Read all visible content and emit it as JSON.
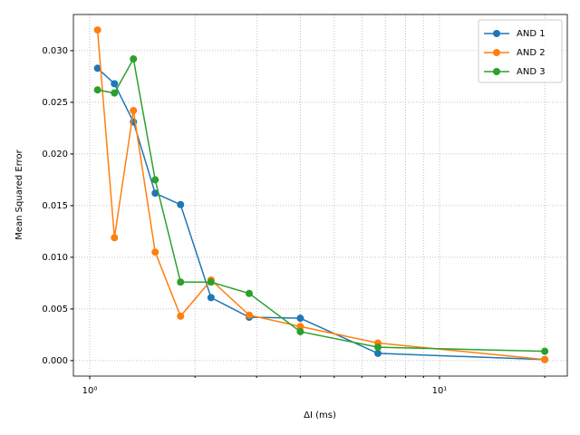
{
  "chart_data": {
    "type": "line",
    "xlabel": "ΔI (ms)",
    "ylabel": "Mean Squared Error",
    "x": [
      1.0526,
      1.1765,
      1.3333,
      1.5385,
      1.8182,
      2.2222,
      2.8571,
      4.0,
      6.6667,
      20.0
    ],
    "series": [
      {
        "name": "AND 1",
        "color": "#1f77b4",
        "values": [
          0.0283,
          0.0268,
          0.0231,
          0.0162,
          0.0151,
          0.0061,
          0.0042,
          0.0041,
          0.0007,
          0.0001
        ]
      },
      {
        "name": "AND 2",
        "color": "#ff7f0e",
        "values": [
          0.032,
          0.0119,
          0.0242,
          0.0105,
          0.0043,
          0.0078,
          0.0044,
          0.0033,
          0.0017,
          0.0001
        ]
      },
      {
        "name": "AND 3",
        "color": "#2ca02c",
        "values": [
          0.0262,
          0.0259,
          0.0292,
          0.0175,
          0.0076,
          0.0076,
          0.0065,
          0.0028,
          0.0013,
          0.0009
        ]
      }
    ],
    "xscale": "log",
    "xlim": [
      0.898,
      23.2
    ],
    "xticks": [
      {
        "value": 1,
        "label": "10⁰"
      },
      {
        "value": 10,
        "label": "10¹"
      }
    ],
    "xminorticks": [
      2,
      3,
      4,
      5,
      6,
      7,
      8,
      9,
      20
    ],
    "ylim": [
      -0.0015,
      0.0335
    ],
    "yticks": [
      {
        "value": 0,
        "label": "0.000"
      },
      {
        "value": 0.005,
        "label": "0.005"
      },
      {
        "value": 0.01,
        "label": "0.010"
      },
      {
        "value": 0.015,
        "label": "0.015"
      },
      {
        "value": 0.02,
        "label": "0.020"
      },
      {
        "value": 0.025,
        "label": "0.025"
      },
      {
        "value": 0.03,
        "label": "0.030"
      }
    ],
    "grid": true,
    "legend": "upper right"
  }
}
